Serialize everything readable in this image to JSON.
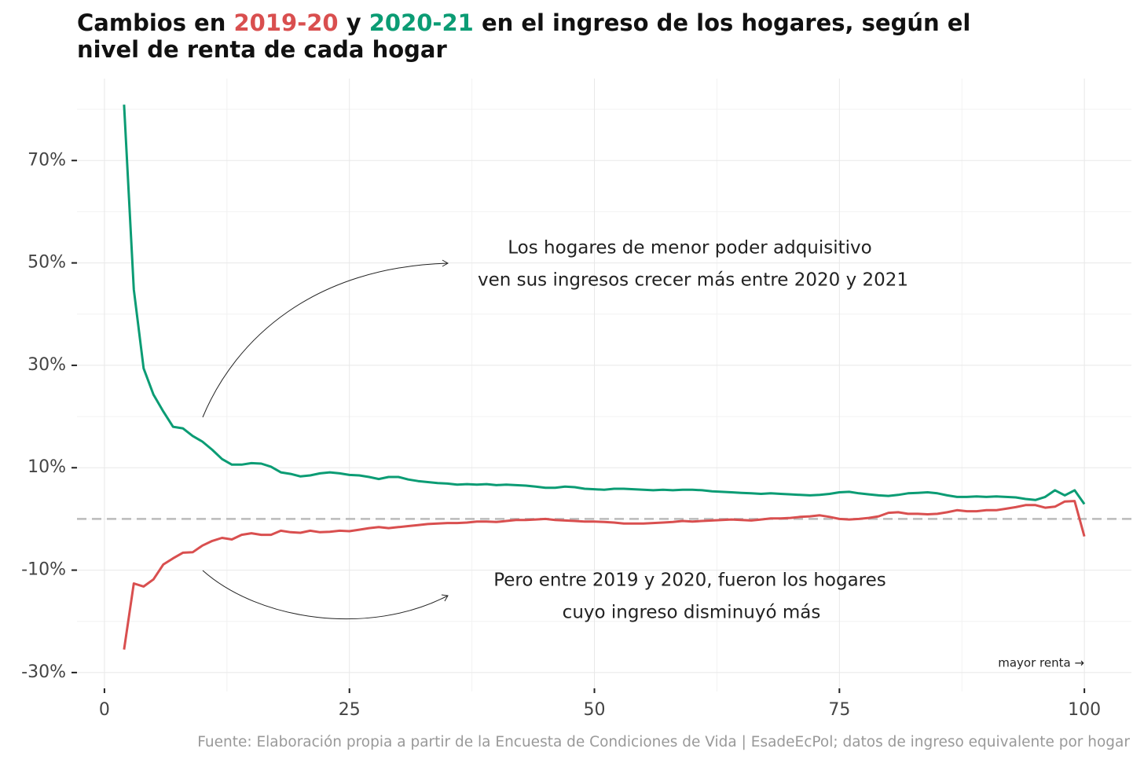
{
  "chart_data": {
    "type": "line",
    "title_parts": [
      "Cambios en",
      "2019-20",
      "y",
      "2020-21",
      "en el ingreso de los hogares, según el",
      "nivel de renta de cada hogar"
    ],
    "x": [
      2,
      3,
      4,
      5,
      6,
      7,
      8,
      9,
      10,
      11,
      12,
      13,
      14,
      15,
      16,
      17,
      18,
      19,
      20,
      21,
      22,
      23,
      24,
      25,
      26,
      27,
      28,
      29,
      30,
      31,
      32,
      33,
      34,
      35,
      36,
      37,
      38,
      39,
      40,
      41,
      42,
      43,
      44,
      45,
      46,
      47,
      48,
      49,
      50,
      51,
      52,
      53,
      54,
      55,
      56,
      57,
      58,
      59,
      60,
      61,
      62,
      63,
      64,
      65,
      66,
      67,
      68,
      69,
      70,
      71,
      72,
      73,
      74,
      75,
      76,
      77,
      78,
      79,
      80,
      81,
      82,
      83,
      84,
      85,
      86,
      87,
      88,
      89,
      90,
      91,
      92,
      93,
      94,
      95,
      96,
      97,
      98,
      99,
      100
    ],
    "series": [
      {
        "name": "2019-20",
        "color": "#d94f4f",
        "values": [
          -25.5,
          -12.6,
          -13.2,
          -11.8,
          -8.9,
          -7.7,
          -6.6,
          -6.5,
          -5.2,
          -4.3,
          -3.7,
          -4.0,
          -3.1,
          -2.8,
          -3.1,
          -3.1,
          -2.3,
          -2.6,
          -2.7,
          -2.3,
          -2.6,
          -2.5,
          -2.3,
          -2.4,
          -2.1,
          -1.8,
          -1.6,
          -1.8,
          -1.6,
          -1.4,
          -1.2,
          -1.0,
          -0.9,
          -0.8,
          -0.8,
          -0.7,
          -0.5,
          -0.5,
          -0.6,
          -0.4,
          -0.2,
          -0.2,
          -0.1,
          0.0,
          -0.2,
          -0.3,
          -0.4,
          -0.5,
          -0.5,
          -0.6,
          -0.7,
          -0.9,
          -0.9,
          -0.9,
          -0.8,
          -0.7,
          -0.6,
          -0.4,
          -0.5,
          -0.4,
          -0.3,
          -0.2,
          -0.1,
          -0.2,
          -0.3,
          -0.1,
          0.1,
          0.1,
          0.2,
          0.4,
          0.5,
          0.7,
          0.4,
          0.0,
          -0.1,
          0.0,
          0.2,
          0.5,
          1.2,
          1.3,
          1.0,
          1.0,
          0.9,
          1.0,
          1.3,
          1.7,
          1.5,
          1.5,
          1.7,
          1.7,
          2.0,
          2.3,
          2.7,
          2.7,
          2.2,
          2.4,
          3.4,
          3.5,
          -3.4
        ]
      },
      {
        "name": "2020-21",
        "color": "#0b9c74",
        "values": [
          80.9,
          44.8,
          29.4,
          24.3,
          21.0,
          18.0,
          17.7,
          16.2,
          15.1,
          13.5,
          11.7,
          10.6,
          10.6,
          10.9,
          10.8,
          10.2,
          9.1,
          8.8,
          8.3,
          8.5,
          8.9,
          9.1,
          8.9,
          8.6,
          8.5,
          8.2,
          7.8,
          8.2,
          8.2,
          7.7,
          7.4,
          7.2,
          7.0,
          6.9,
          6.7,
          6.8,
          6.7,
          6.8,
          6.6,
          6.7,
          6.6,
          6.5,
          6.3,
          6.1,
          6.1,
          6.3,
          6.2,
          5.9,
          5.8,
          5.7,
          5.9,
          5.9,
          5.8,
          5.7,
          5.6,
          5.7,
          5.6,
          5.7,
          5.7,
          5.6,
          5.4,
          5.3,
          5.2,
          5.1,
          5.0,
          4.9,
          5.0,
          4.9,
          4.8,
          4.7,
          4.6,
          4.7,
          4.9,
          5.2,
          5.3,
          5.0,
          4.8,
          4.6,
          4.5,
          4.7,
          5.0,
          5.1,
          5.2,
          5.0,
          4.6,
          4.3,
          4.3,
          4.4,
          4.3,
          4.4,
          4.3,
          4.2,
          3.9,
          3.7,
          4.3,
          5.6,
          4.6,
          5.6,
          2.9
        ]
      }
    ],
    "xlim": [
      -2.8,
      104.8
    ],
    "ylim": [
      -33.7,
      86
    ],
    "xticks": [
      0,
      25,
      50,
      75,
      100
    ],
    "yticks": [
      {
        "value": 70,
        "label": "70%"
      },
      {
        "value": 50,
        "label": "50%"
      },
      {
        "value": 30,
        "label": "30%"
      },
      {
        "value": 10,
        "label": "10%"
      },
      {
        "value": -10,
        "label": "-10%"
      },
      {
        "value": -30,
        "label": "-30%"
      }
    ],
    "yminor_ticks": [
      80,
      60,
      40,
      20,
      0,
      -20
    ],
    "xminor_ticks": [
      12.5,
      37.5,
      62.5,
      87.5
    ],
    "grid": true,
    "reference_line": 0,
    "annotations": [
      {
        "lines": [
          "Los hogares de menor poder adquisitivo",
          "ven sus ingresos crecer más entre 2020 y 2021"
        ]
      },
      {
        "lines": [
          "Pero entre 2019 y 2020, fueron los hogares",
          "cuyo ingreso disminuyó más"
        ]
      }
    ],
    "x_note": "mayor renta →",
    "source": "Fuente: Elaboración propia a partir de la Encuesta de Condiciones de Vida | EsadeEcPol; datos de ingreso equivalente por hogar"
  }
}
